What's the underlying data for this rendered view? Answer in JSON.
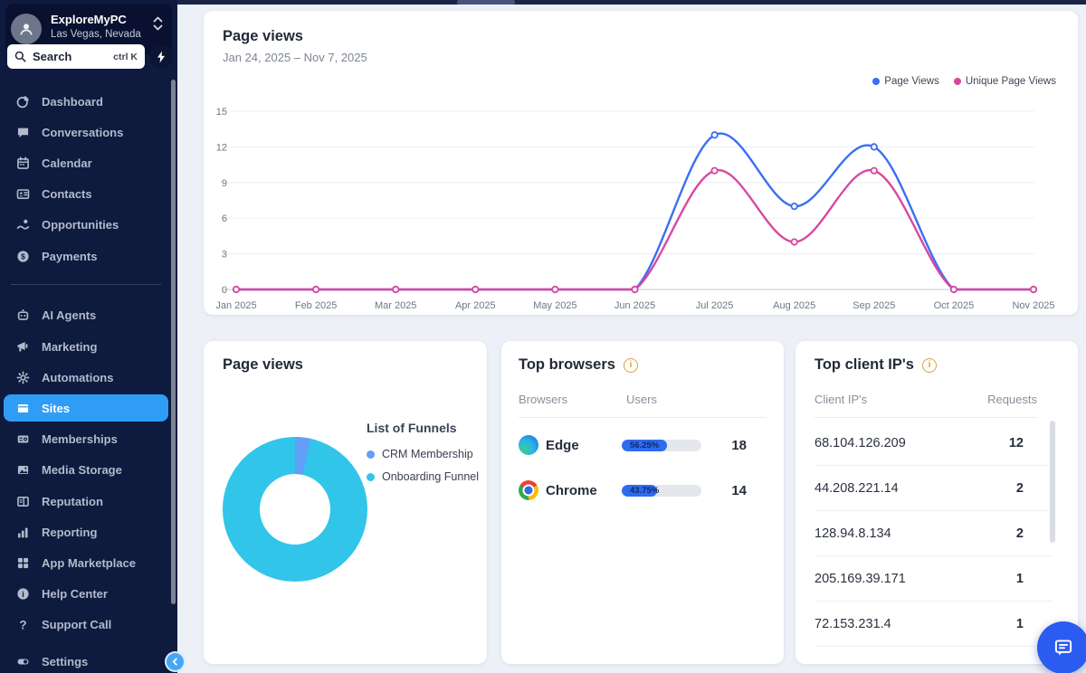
{
  "sidebar": {
    "org_name": "ExploreMyPC",
    "org_location": "Las Vegas, Nevada",
    "search_placeholder": "Search",
    "search_shortcut": "ctrl K",
    "items": [
      {
        "label": "Dashboard"
      },
      {
        "label": "Conversations"
      },
      {
        "label": "Calendar"
      },
      {
        "label": "Contacts"
      },
      {
        "label": "Opportunities"
      },
      {
        "label": "Payments"
      },
      {
        "label": "AI Agents"
      },
      {
        "label": "Marketing"
      },
      {
        "label": "Automations"
      },
      {
        "label": "Sites",
        "active": true
      },
      {
        "label": "Memberships"
      },
      {
        "label": "Media Storage"
      },
      {
        "label": "Reputation"
      },
      {
        "label": "Reporting"
      },
      {
        "label": "App Marketplace"
      },
      {
        "label": "Help Center"
      },
      {
        "label": "Support Call"
      },
      {
        "label": "Settings"
      }
    ]
  },
  "page_views_card": {
    "title": "Page views",
    "date_range": "Jan 24, 2025 – Nov 7, 2025",
    "legend": [
      {
        "label": "Page Views",
        "color": "#3a6ff2"
      },
      {
        "label": "Unique Page Views",
        "color": "#d9489f"
      }
    ]
  },
  "chart_data": [
    {
      "type": "line",
      "title": "Page views",
      "subtitle": "Jan 24, 2025 – Nov 7, 2025",
      "categories": [
        "Jan 2025",
        "Feb 2025",
        "Mar 2025",
        "Apr 2025",
        "May 2025",
        "Jun 2025",
        "Jul 2025",
        "Aug 2025",
        "Sep 2025",
        "Oct 2025",
        "Nov 2025"
      ],
      "series": [
        {
          "name": "Page Views",
          "color": "#3a6ff2",
          "values": [
            0,
            0,
            0,
            0,
            0,
            0,
            13,
            7,
            12,
            0,
            0
          ]
        },
        {
          "name": "Unique Page Views",
          "color": "#d9489f",
          "values": [
            0,
            0,
            0,
            0,
            0,
            0,
            10,
            4,
            10,
            0,
            0
          ]
        }
      ],
      "ylim": [
        0,
        15
      ],
      "yticks": [
        0,
        3,
        6,
        9,
        12,
        15
      ],
      "grid": true,
      "smooth": true,
      "legend_position": "top-right"
    },
    {
      "type": "pie",
      "variant": "donut",
      "title": "Page views",
      "legend_title": "List of Funnels",
      "labels": [
        "CRM Membership",
        "Onboarding Funnel"
      ],
      "values": [
        3.5,
        96.5
      ],
      "unit": "percent (estimated from arc angles)",
      "colors": [
        "#639ff7",
        "#31c5e9"
      ]
    }
  ],
  "funnels_card": {
    "title": "Page views",
    "legend_title": "List of Funnels",
    "legend": [
      {
        "label": "CRM Membership",
        "color": "#639ff7"
      },
      {
        "label": "Onboarding Funnel",
        "color": "#31c5e9"
      }
    ]
  },
  "browsers_card": {
    "title": "Top browsers",
    "col_browsers": "Browsers",
    "col_users": "Users",
    "rows": [
      {
        "name": "Edge",
        "percent": "56.25%",
        "users": "18"
      },
      {
        "name": "Chrome",
        "percent": "43.75%",
        "users": "14"
      }
    ]
  },
  "ips_card": {
    "title": "Top client IP's",
    "col_ips": "Client IP's",
    "col_requests": "Requests",
    "rows": [
      {
        "ip": "68.104.126.209",
        "requests": "12"
      },
      {
        "ip": "44.208.221.14",
        "requests": "2"
      },
      {
        "ip": "128.94.8.134",
        "requests": "2"
      },
      {
        "ip": "205.169.39.171",
        "requests": "1"
      },
      {
        "ip": "72.153.231.4",
        "requests": "1"
      }
    ]
  },
  "colors": {
    "sidebar_bg": "#0e1a3e",
    "active_item": "#2f9df5",
    "series_blue": "#3a6ff2",
    "series_pink": "#d9489f",
    "donut_cyan": "#31c5e9",
    "donut_blue": "#639ff7",
    "bar_fill": "#2e6bf0",
    "info_icon": "#d9a43c",
    "fab": "#2b5bf0"
  }
}
